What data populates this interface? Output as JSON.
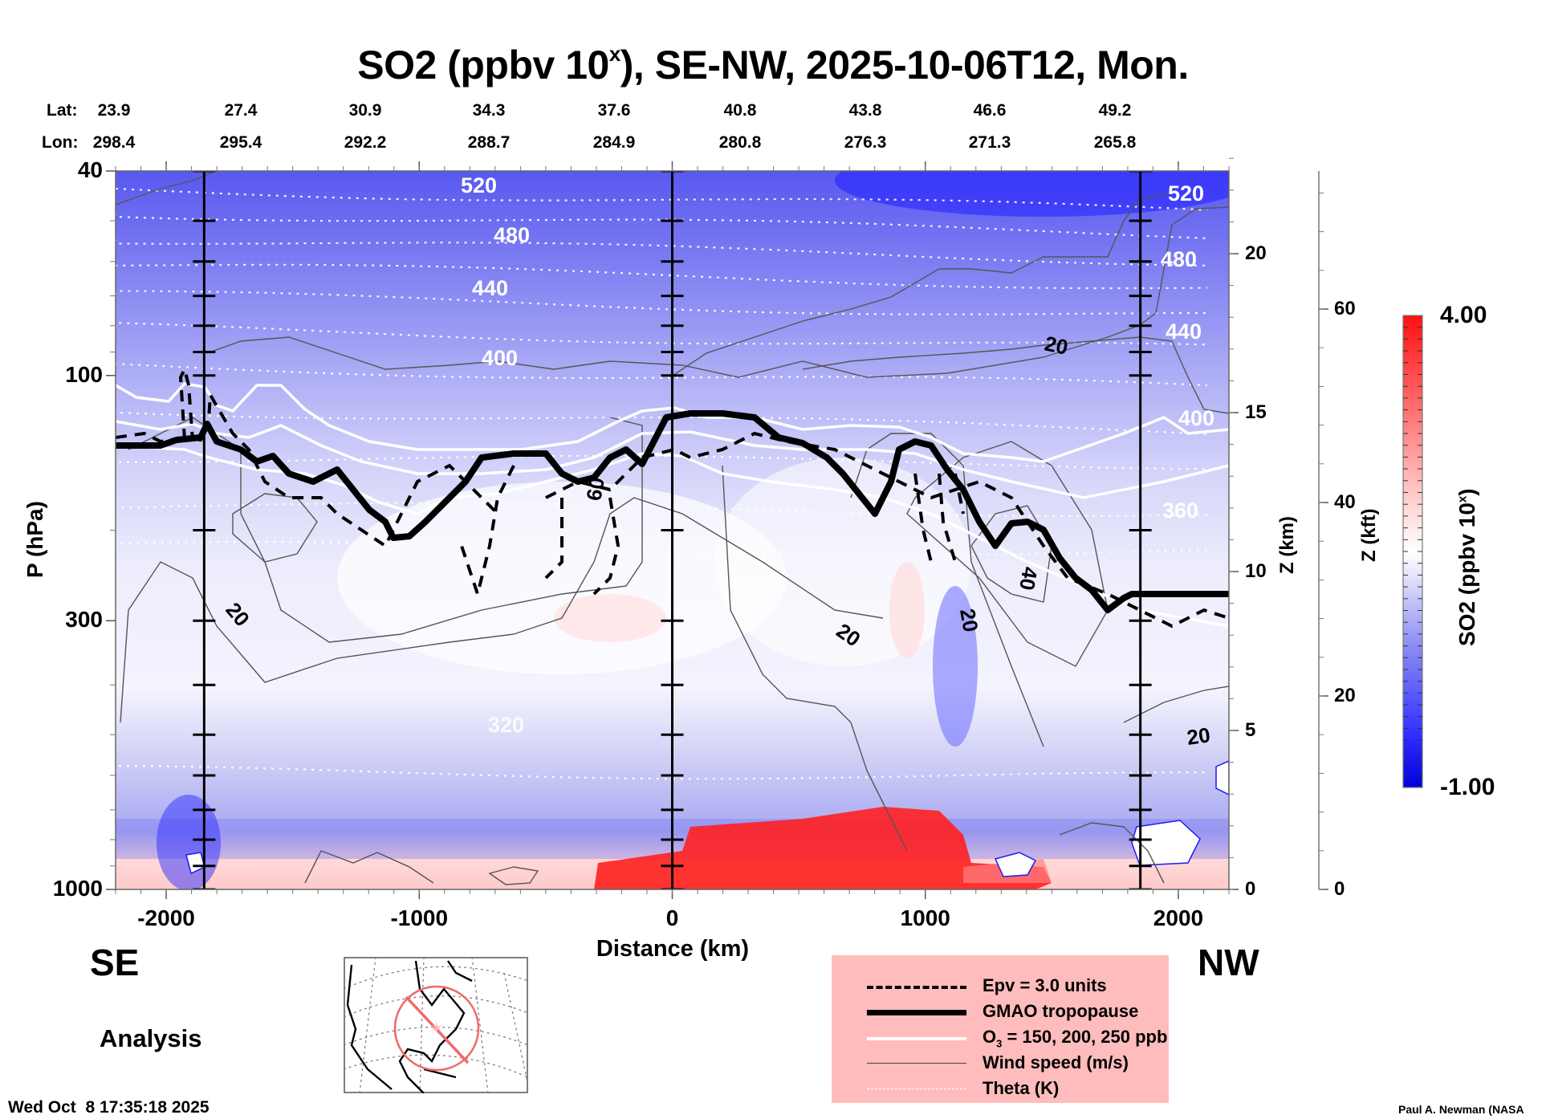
{
  "chart_data": {
    "type": "heatmap",
    "title": "SO2 (ppbv 10",
    "title_sup": "x",
    "title_rest": "), SE-NW, 2025-10-06T12, Mon.",
    "xlabel": "Distance (km)",
    "ylabel": "P (hPa)",
    "xlim": [
      -2200,
      2200
    ],
    "ylim": [
      1000,
      40
    ],
    "y_scale": "log",
    "x_ticks": [
      -2000,
      -1000,
      0,
      1000,
      2000
    ],
    "y_ticks": [
      40,
      100,
      300,
      1000
    ],
    "right_axes": [
      {
        "label": "Z (km)",
        "ticks": [
          0,
          5,
          10,
          15,
          20
        ]
      },
      {
        "label": "Z (kft)",
        "ticks": [
          0,
          20,
          40,
          60
        ]
      }
    ],
    "lat_label": "Lat:",
    "lon_label": "Lon:",
    "lat_lon_points": [
      {
        "lat": "23.9",
        "lon": "298.4"
      },
      {
        "lat": "27.4",
        "lon": "295.4"
      },
      {
        "lat": "30.9",
        "lon": "292.2"
      },
      {
        "lat": "34.3",
        "lon": "288.7"
      },
      {
        "lat": "37.6",
        "lon": "284.9"
      },
      {
        "lat": "40.8",
        "lon": "280.8"
      },
      {
        "lat": "43.8",
        "lon": "276.3"
      },
      {
        "lat": "46.6",
        "lon": "271.3"
      },
      {
        "lat": "49.2",
        "lon": "265.8"
      }
    ],
    "colorbar": {
      "label": "SO2 (ppbv 10",
      "label_sup": "x",
      "label_end": ")",
      "min": "-1.00",
      "max": "4.00",
      "min_color": "#0000e0",
      "mid_color": "#ffffff",
      "max_color": "#ff1010"
    },
    "theta_labels": [
      "520",
      "480",
      "440",
      "400",
      "360",
      "320"
    ],
    "theta_levels": [
      520,
      500,
      480,
      460,
      440,
      420,
      400,
      380,
      360,
      340,
      320,
      300
    ],
    "wind_labels": [
      "20",
      "20",
      "20",
      "20",
      "40",
      "60",
      "20"
    ],
    "vertical_markers_km": [
      -1850,
      0,
      1850
    ],
    "direction_left": "SE",
    "direction_right": "NW",
    "legend": [
      {
        "style": "dashed",
        "label": "Epv = 3.0 units"
      },
      {
        "style": "thick",
        "label": "GMAO tropopause"
      },
      {
        "style": "white",
        "label": "O",
        "label_sub": "3",
        "label_rest": " = 150, 200, 250 ppb"
      },
      {
        "style": "thin",
        "label": "Wind speed (m/s)"
      },
      {
        "style": "dotted",
        "label": "Theta (K)"
      }
    ]
  },
  "annotation": {
    "analysis": "Analysis",
    "timestamp": "Wed Oct  8 17:35:18 2025",
    "credit": "Paul A. Newman (NASA"
  },
  "colors": {
    "legend_bg": "#ffbcbc",
    "track_line": "#f06a6a"
  }
}
